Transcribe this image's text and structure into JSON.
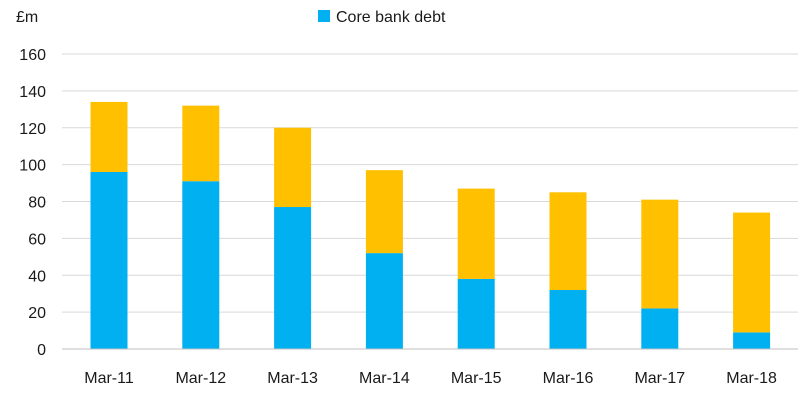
{
  "chart_data": {
    "type": "bar",
    "stacked": true,
    "categories": [
      "Mar-11",
      "Mar-12",
      "Mar-13",
      "Mar-14",
      "Mar-15",
      "Mar-16",
      "Mar-17",
      "Mar-18"
    ],
    "series": [
      {
        "name": "Core bank debt",
        "color": "#00b0f0",
        "values": [
          96,
          91,
          77,
          52,
          38,
          32,
          22,
          9
        ]
      },
      {
        "color": "#ffc000",
        "values": [
          38,
          41,
          43,
          45,
          49,
          53,
          59,
          65
        ]
      }
    ],
    "ylim": [
      0,
      160
    ],
    "yticks": [
      0,
      20,
      40,
      60,
      80,
      100,
      120,
      140,
      160
    ],
    "yunit": "£m",
    "title": "",
    "xlabel": "",
    "ylabel": "",
    "grid": true,
    "legend_position": "top-center"
  }
}
